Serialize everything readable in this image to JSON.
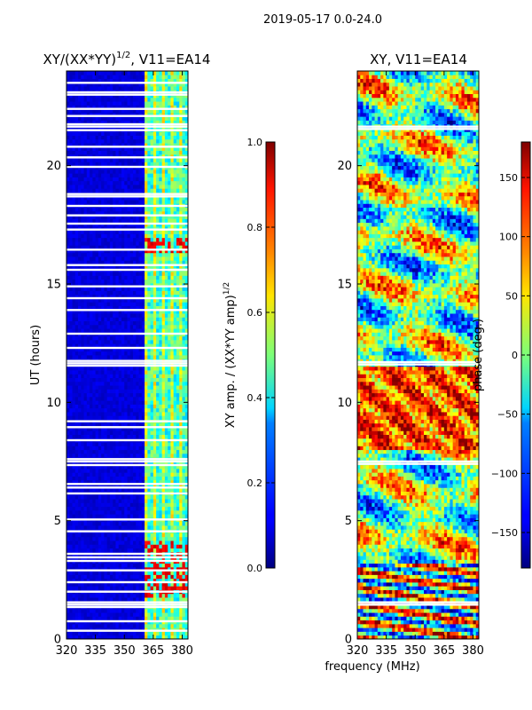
{
  "suptitle": "2019-05-17 0.0-24.0",
  "xlabel": "frequency (MHz)",
  "chart_data": [
    {
      "type": "heatmap",
      "id": "amp",
      "title": "XY/(XX*YY)^1/2, V11=EA14",
      "title_main": "XY/(XX*YY)",
      "title_sup": "1/2",
      "title_rest": ", V11=EA14",
      "xlabel": "",
      "ylabel": "UT (hours)",
      "xlim": [
        320,
        383
      ],
      "ylim": [
        0,
        24
      ],
      "xticks": [
        320,
        335,
        350,
        365,
        380
      ],
      "yticks": [
        0,
        5,
        10,
        15,
        20
      ],
      "colormap": "jet",
      "colorbar": {
        "label": "XY amp. / (XX*YY amp)^1/2",
        "label_main": "XY amp. / (XX*YY amp)",
        "label_sup": "1/2",
        "range": [
          0.0,
          1.0
        ],
        "ticks": [
          0.0,
          0.2,
          0.4,
          0.6,
          0.8,
          1.0
        ],
        "tick_labels": [
          "0.0",
          "0.2",
          "0.4",
          "0.6",
          "0.8",
          "1.0"
        ]
      },
      "blank_rows_hours": [
        0.35,
        0.75,
        1.35,
        1.45,
        1.55,
        2.0,
        2.4,
        2.9,
        3.3,
        3.45,
        3.6,
        4.55,
        5.05,
        6.15,
        6.4,
        6.55,
        7.35,
        7.5,
        7.6,
        8.4,
        8.95,
        9.2,
        11.55,
        11.65,
        11.75,
        12.3,
        12.9,
        13.9,
        14.4,
        14.9,
        15.6,
        15.8,
        16.45,
        17.3,
        17.55,
        17.9,
        18.3,
        18.7,
        18.8,
        19.95,
        20.35,
        20.8,
        21.5,
        21.65,
        21.75,
        22.1,
        22.4,
        23.0,
        23.1,
        23.5
      ],
      "active_band_mhz": [
        361,
        382
      ],
      "description_values": "background amplitude ~0.05-0.1 below 361 MHz; band 361-382 MHz shows 0.3-0.6 with strong peaks ~0.85 near 1.8-4.2 h and 16.5-17 h"
    },
    {
      "type": "heatmap",
      "id": "phase",
      "title": "XY, V11=EA14",
      "xlabel": "frequency (MHz)",
      "ylabel": "",
      "xlim": [
        320,
        383
      ],
      "ylim": [
        0,
        24
      ],
      "xticks": [
        320,
        335,
        350,
        365,
        380
      ],
      "yticks": [
        0,
        5,
        10,
        15,
        20
      ],
      "colormap": "jet",
      "colorbar": {
        "label": "phase (deg.)",
        "range": [
          -180,
          180
        ],
        "ticks": [
          -150,
          -100,
          -50,
          0,
          50,
          100,
          150
        ],
        "tick_labels": [
          "−150",
          "−100",
          "−50",
          "0",
          "50",
          "100",
          "150"
        ]
      },
      "blank_rows_hours": [
        1.45,
        1.55,
        7.4,
        7.5,
        11.6,
        11.7,
        21.55,
        21.65
      ],
      "description_values": "phase varies across full range -180..180 deg; mostly positive (red) 8-11.5 h, mixed elsewhere"
    }
  ]
}
